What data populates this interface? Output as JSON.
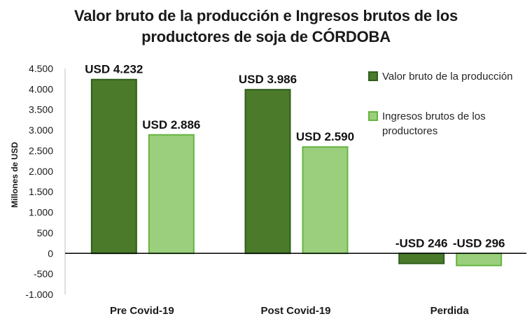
{
  "chart_data": {
    "type": "bar",
    "title_line1": "Valor bruto de la producción e Ingresos brutos de los",
    "title_line2": "productores de soja de CÓRDOBA",
    "ylabel": "Millones de USD",
    "xlabel": "",
    "ylim": [
      -1000,
      4500
    ],
    "yticks": [
      4500,
      4000,
      3500,
      3000,
      2500,
      2000,
      1500,
      1000,
      500,
      0,
      -500,
      -1000
    ],
    "ytick_labels": [
      "4.500",
      "4.000",
      "3.500",
      "3.000",
      "2.500",
      "2.000",
      "1.500",
      "1.000",
      "500",
      "0",
      "-500",
      "-1.000"
    ],
    "categories": [
      "Pre Covid-19",
      "Post Covid-19",
      "Perdida"
    ],
    "series": [
      {
        "name": "Valor bruto de la producción",
        "color": "#4a7a2a",
        "border": "#2f5f1c",
        "values": [
          4232,
          3986,
          -246
        ],
        "labels": [
          "USD 4.232",
          "USD 3.986",
          "-USD 246"
        ]
      },
      {
        "name": "Ingresos brutos de los productores",
        "color": "#9bcf7d",
        "border": "#64b540",
        "values": [
          2886,
          2590,
          -296
        ],
        "labels": [
          "USD 2.886",
          "USD 2.590",
          "-USD 296"
        ]
      }
    ],
    "legend_position": "right",
    "grid": false
  }
}
